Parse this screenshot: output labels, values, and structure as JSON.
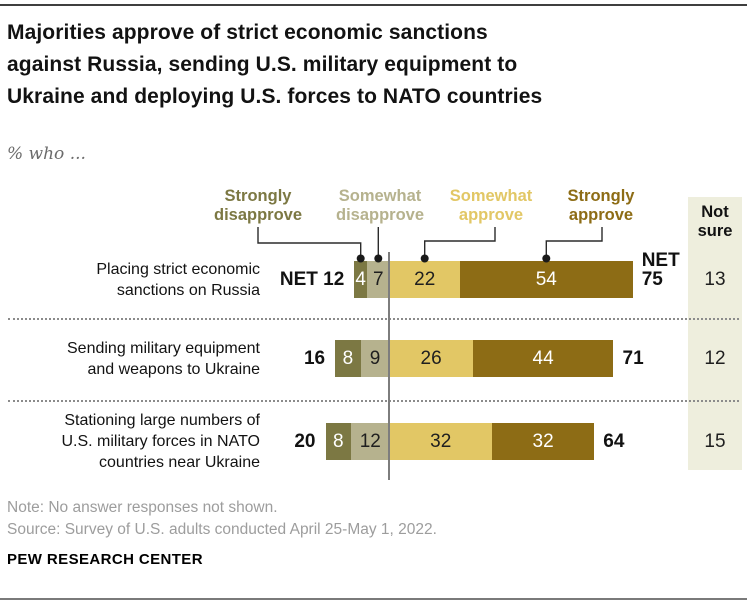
{
  "header": {
    "title_lines": [
      "Majorities approve of strict economic sanctions",
      "against Russia, sending U.S. military equipment to",
      "Ukraine and deploying U.S. forces to NATO countries"
    ],
    "subtitle": "% who ..."
  },
  "chart_data": {
    "type": "bar",
    "variant": "horizontal-diverging-stacked",
    "unit": "percent",
    "legend_position": "top",
    "categories": [
      "Strongly disapprove",
      "Somewhat disapprove",
      "Somewhat approve",
      "Strongly approve"
    ],
    "colors": [
      "#7c7843",
      "#b6b28e",
      "#e2c765",
      "#8d6c15"
    ],
    "value_text_colors": [
      "#ffffff",
      "#1f1f1f",
      "#1f1f1f",
      "#ffffff"
    ],
    "net_prefix": "NET",
    "not_sure": {
      "label": "Not sure",
      "band_color": "#eeeedd"
    },
    "rows": [
      {
        "label": "Placing strict economic sanctions on Russia",
        "label_lines": [
          "Placing strict economic",
          "sanctions on Russia"
        ],
        "values": [
          4,
          7,
          22,
          54
        ],
        "net_disapprove": 12,
        "net_approve": 75,
        "not_sure": 13,
        "show_net_prefix": true
      },
      {
        "label": "Sending military equipment and weapons to Ukraine",
        "label_lines": [
          "Sending military equipment",
          "and weapons to Ukraine"
        ],
        "values": [
          8,
          9,
          26,
          44
        ],
        "net_disapprove": 16,
        "net_approve": 71,
        "not_sure": 12,
        "show_net_prefix": false
      },
      {
        "label": "Stationing large numbers of U.S. military forces in NATO countries near Ukraine",
        "label_lines": [
          "Stationing large numbers of",
          "U.S. military forces in NATO",
          "countries near Ukraine"
        ],
        "values": [
          8,
          12,
          32,
          32
        ],
        "net_disapprove": 20,
        "net_approve": 64,
        "not_sure": 15,
        "show_net_prefix": false
      }
    ]
  },
  "footer": {
    "note": "Note: No answer responses not shown.",
    "source": "Source: Survey of U.S. adults conducted April 25-May 1, 2022.",
    "brand": "PEW RESEARCH CENTER"
  }
}
